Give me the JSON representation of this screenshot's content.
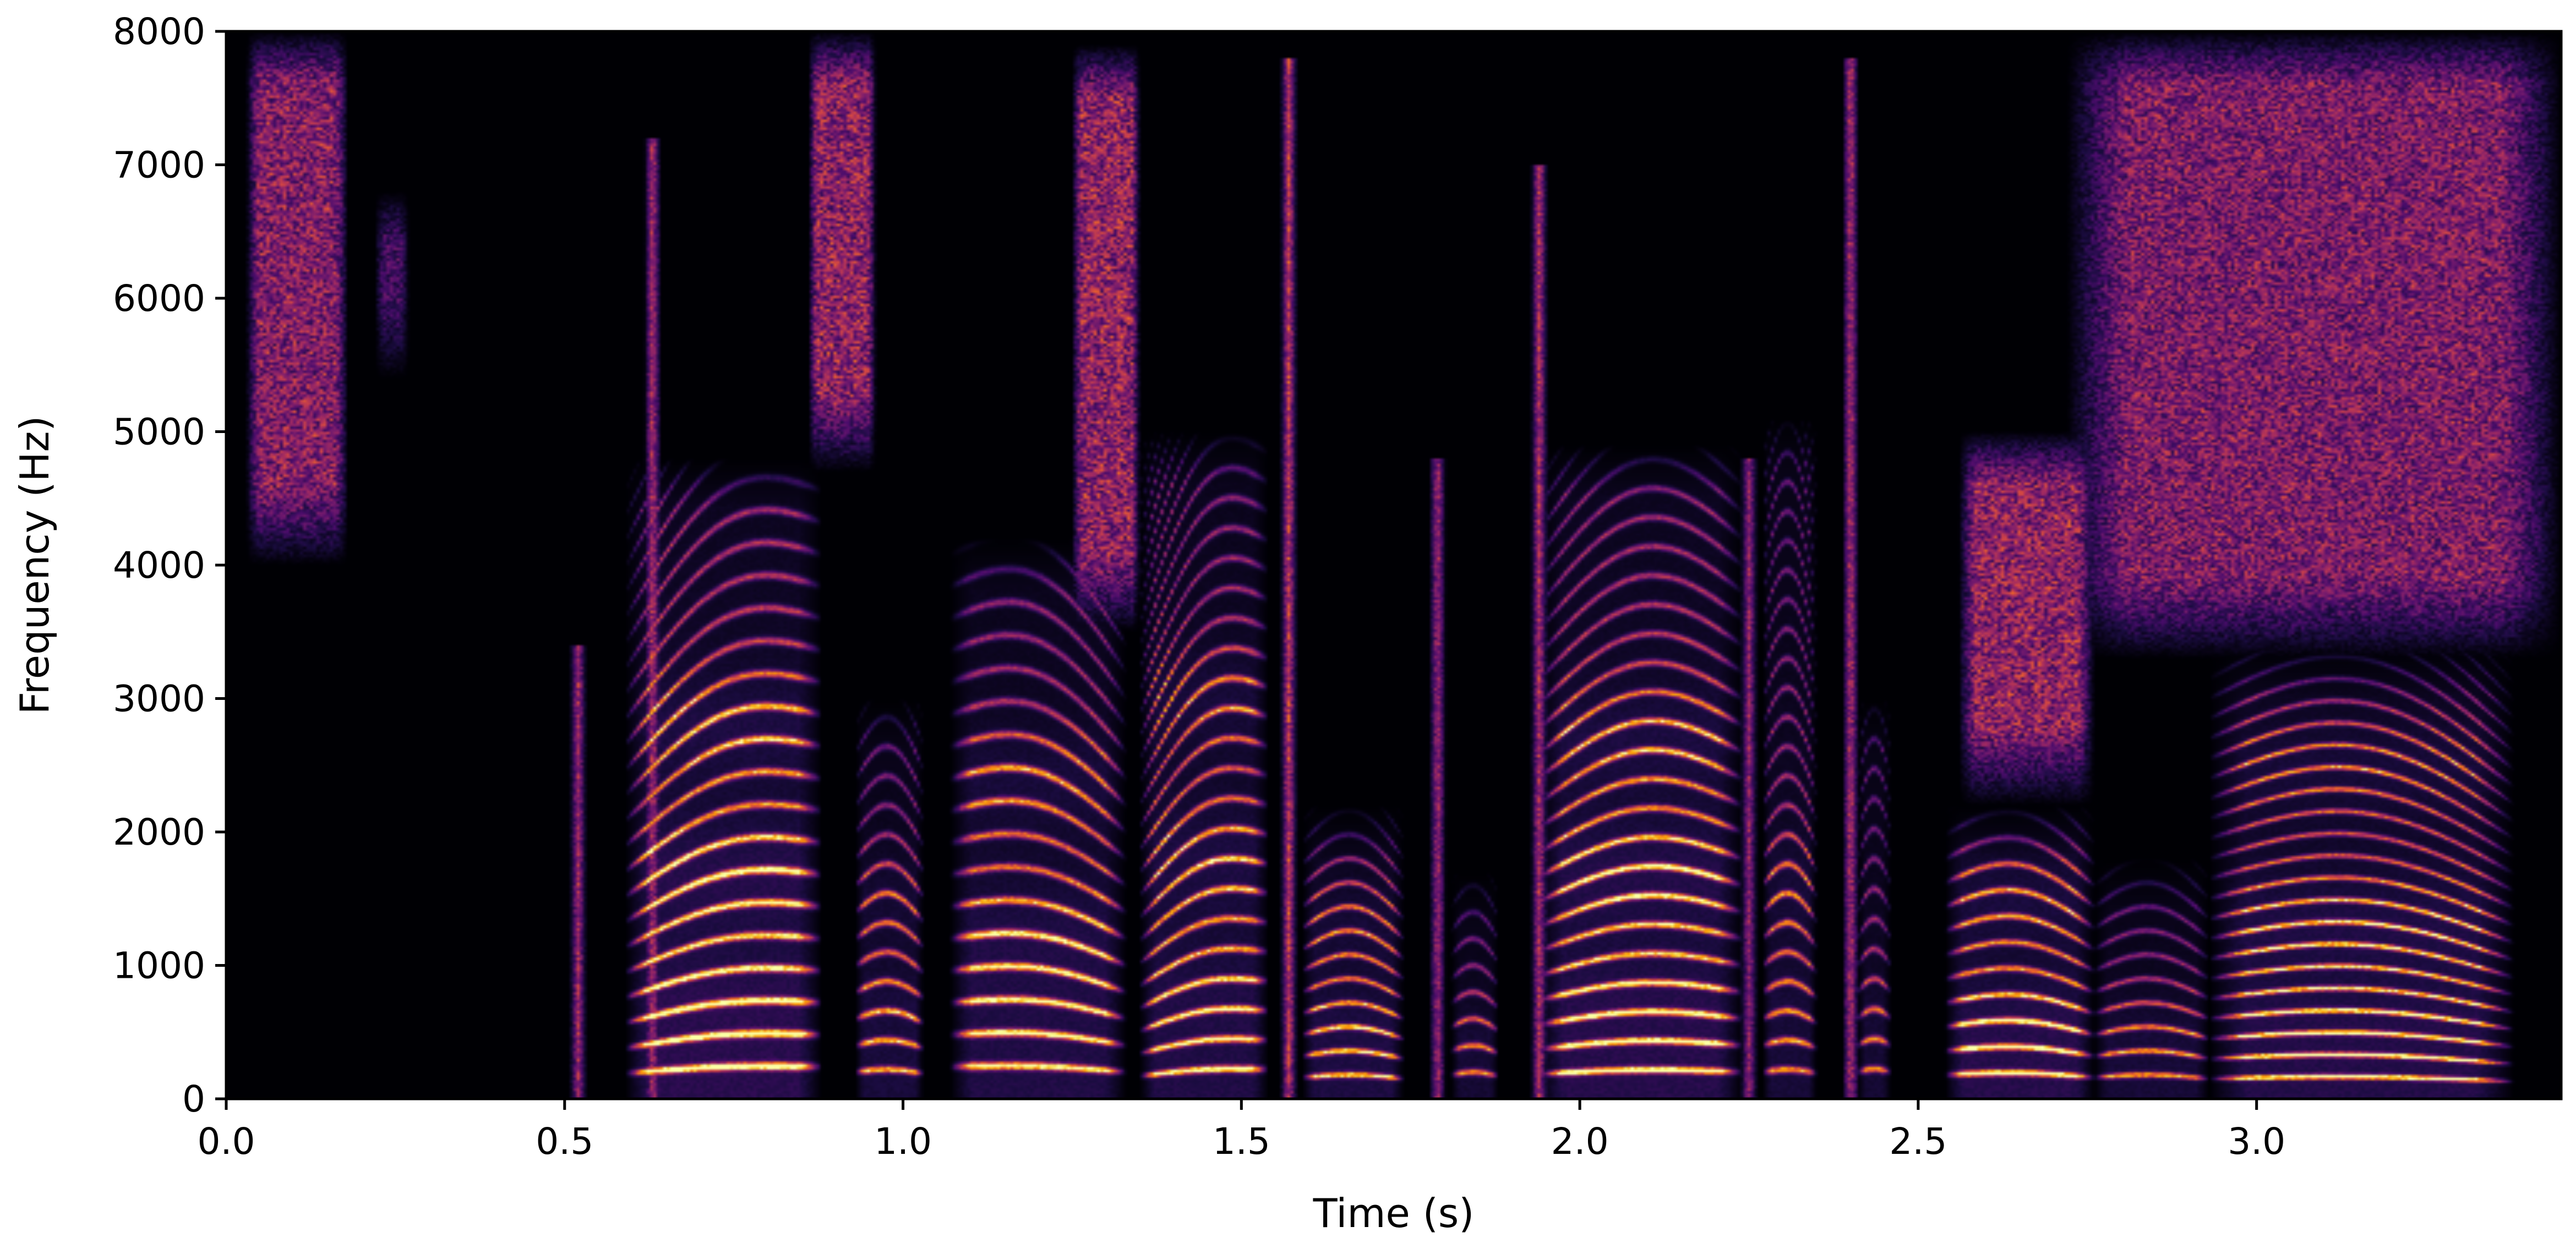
{
  "chart_data": {
    "type": "heatmap",
    "subtype": "spectrogram",
    "title": "",
    "xlabel": "Time (s)",
    "ylabel": "Frequency (Hz)",
    "xlim": [
      0,
      3.45
    ],
    "ylim": [
      0,
      8000
    ],
    "xticks": [
      0.0,
      0.5,
      1.0,
      1.5,
      2.0,
      2.5,
      3.0
    ],
    "xtick_labels": [
      "0.0",
      "0.5",
      "1.0",
      "1.5",
      "2.0",
      "2.5",
      "3.0"
    ],
    "yticks": [
      0,
      1000,
      2000,
      3000,
      4000,
      5000,
      6000,
      7000,
      8000
    ],
    "ytick_labels": [
      "0",
      "1000",
      "2000",
      "3000",
      "4000",
      "5000",
      "6000",
      "7000",
      "8000"
    ],
    "colormap": "inferno",
    "colormap_stops": [
      "#000004",
      "#1b0c41",
      "#4a0c6b",
      "#781c6d",
      "#a52c60",
      "#cf4446",
      "#ed6925",
      "#fb9b06",
      "#f7d13d",
      "#fcffa4"
    ],
    "grid": false,
    "colorbar": false,
    "segments": [
      {
        "type": "fricative",
        "t0": 0.03,
        "t1": 0.18,
        "f0": 4300,
        "f1": 7800,
        "level": 0.42
      },
      {
        "type": "noise",
        "t0": 0.22,
        "t1": 0.27,
        "f0": 5700,
        "f1": 6600,
        "level": 0.25
      },
      {
        "type": "burst",
        "t": 0.52,
        "f1": 3400,
        "level": 0.55
      },
      {
        "type": "voiced",
        "t0": 0.59,
        "t1": 0.88,
        "pitch0": 190,
        "pitch1": 240,
        "fmax": 4800,
        "level": 1.0,
        "formants": [
          550,
          1700,
          2800
        ]
      },
      {
        "type": "burst",
        "t": 0.63,
        "f1": 7200,
        "level": 0.6
      },
      {
        "type": "fricative",
        "t0": 0.86,
        "t1": 0.96,
        "f0": 5000,
        "f1": 7800,
        "level": 0.45
      },
      {
        "type": "voiced",
        "t0": 0.93,
        "t1": 1.03,
        "pitch0": 200,
        "pitch1": 190,
        "fmax": 3000,
        "level": 0.7,
        "formants": [
          600,
          1500
        ]
      },
      {
        "type": "voiced",
        "t0": 1.07,
        "t1": 1.33,
        "pitch0": 240,
        "pitch1": 200,
        "fmax": 4200,
        "level": 0.85,
        "formants": [
          500,
          1200,
          2400
        ]
      },
      {
        "type": "fricative",
        "t0": 1.25,
        "t1": 1.35,
        "f0": 3800,
        "f1": 7700,
        "level": 0.45
      },
      {
        "type": "voiced",
        "t0": 1.35,
        "t1": 1.54,
        "pitch0": 170,
        "pitch1": 220,
        "fmax": 5000,
        "level": 0.85,
        "formants": [
          600,
          1800,
          3000
        ]
      },
      {
        "type": "burst",
        "t": 1.57,
        "f1": 7800,
        "level": 0.65
      },
      {
        "type": "voiced",
        "t0": 1.59,
        "t1": 1.74,
        "pitch0": 160,
        "pitch1": 150,
        "fmax": 2200,
        "level": 0.8,
        "formants": [
          450,
          1300
        ]
      },
      {
        "type": "burst",
        "t": 1.79,
        "f1": 4800,
        "level": 0.55
      },
      {
        "type": "voiced",
        "t0": 1.81,
        "t1": 1.88,
        "pitch0": 180,
        "pitch1": 170,
        "fmax": 1700,
        "level": 0.6,
        "formants": [
          400
        ]
      },
      {
        "type": "burst",
        "t": 1.94,
        "f1": 7000,
        "level": 0.6
      },
      {
        "type": "voiced",
        "t0": 1.94,
        "t1": 2.24,
        "pitch0": 185,
        "pitch1": 200,
        "fmax": 4900,
        "level": 0.95,
        "formants": [
          500,
          1700,
          2700
        ]
      },
      {
        "type": "burst",
        "t": 2.25,
        "f1": 4800,
        "level": 0.5
      },
      {
        "type": "voiced",
        "t0": 2.27,
        "t1": 2.35,
        "pitch0": 200,
        "pitch1": 190,
        "fmax": 5100,
        "level": 0.65,
        "formants": [
          500,
          1600
        ]
      },
      {
        "type": "burst",
        "t": 2.4,
        "f1": 7800,
        "level": 0.6
      },
      {
        "type": "voiced",
        "t0": 2.41,
        "t1": 2.46,
        "pitch0": 200,
        "pitch1": 200,
        "fmax": 3000,
        "level": 0.6,
        "formants": [
          450
        ]
      },
      {
        "type": "voiced",
        "t0": 2.54,
        "t1": 2.76,
        "pitch0": 180,
        "pitch1": 160,
        "fmax": 2200,
        "level": 0.95,
        "formants": [
          500,
          1500
        ]
      },
      {
        "type": "fricative",
        "t0": 2.56,
        "t1": 2.76,
        "f0": 2500,
        "f1": 4800,
        "level": 0.45
      },
      {
        "type": "fricative",
        "t0": 2.72,
        "t1": 3.45,
        "f0": 3600,
        "f1": 7800,
        "level": 0.4
      },
      {
        "type": "voiced",
        "t0": 2.76,
        "t1": 2.93,
        "pitch0": 160,
        "pitch1": 150,
        "fmax": 1800,
        "level": 0.65,
        "formants": [
          400
        ]
      },
      {
        "type": "voiced",
        "t0": 2.93,
        "t1": 3.38,
        "pitch0": 150,
        "pitch1": 130,
        "fmax": 3400,
        "level": 0.9,
        "formants": [
          400,
          1300,
          2500
        ]
      }
    ]
  }
}
